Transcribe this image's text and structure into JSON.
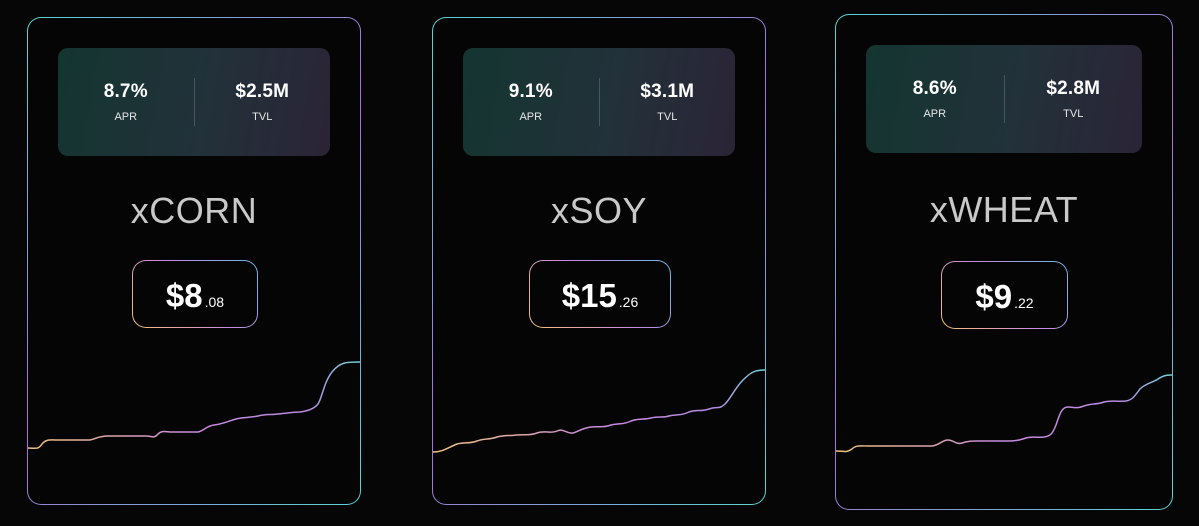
{
  "cards": [
    {
      "name": "xCORN",
      "apr": "8.7%",
      "apr_label": "APR",
      "tvl": "$2.5M",
      "tvl_label": "TVL",
      "price_int": "$8",
      "price_dec": ".08"
    },
    {
      "name": "xSOY",
      "apr": "9.1%",
      "apr_label": "APR",
      "tvl": "$3.1M",
      "tvl_label": "TVL",
      "price_int": "$15",
      "price_dec": ".26"
    },
    {
      "name": "xWHEAT",
      "apr": "8.6%",
      "apr_label": "APR",
      "tvl": "$2.8M",
      "tvl_label": "TVL",
      "price_int": "$9",
      "price_dec": ".22"
    }
  ],
  "colors": {
    "background": "#060606",
    "card_border_start": "#5ad6d0",
    "card_border_mid": "#a86fd8",
    "sparkline_start": "#f1c27a",
    "sparkline_mid": "#c98adf",
    "sparkline_end": "#6bd6d6"
  }
}
